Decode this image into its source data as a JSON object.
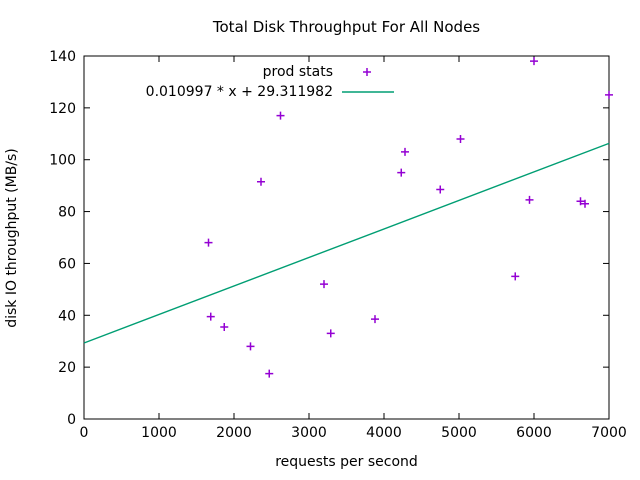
{
  "chart_data": {
    "type": "scatter",
    "title": "Total Disk Throughput For All Nodes",
    "xlabel": "requests per second",
    "ylabel": "disk IO throughput (MB/s)",
    "xlim": [
      0,
      7000
    ],
    "ylim": [
      0,
      140
    ],
    "xticks": [
      0,
      1000,
      2000,
      3000,
      4000,
      5000,
      6000,
      7000
    ],
    "yticks": [
      0,
      20,
      40,
      60,
      80,
      100,
      120,
      140
    ],
    "grid": false,
    "legend_position": "top-center-inside",
    "series": [
      {
        "name": "prod stats",
        "type": "points",
        "marker": "plus",
        "color": "#9400D3",
        "points": [
          [
            1660,
            68
          ],
          [
            1690,
            39.5
          ],
          [
            1870,
            35.5
          ],
          [
            2220,
            28
          ],
          [
            2360,
            91.5
          ],
          [
            2470,
            17.5
          ],
          [
            2620,
            117
          ],
          [
            3200,
            52
          ],
          [
            3290,
            33
          ],
          [
            3880,
            38.5
          ],
          [
            4230,
            95
          ],
          [
            4280,
            103
          ],
          [
            4750,
            88.5
          ],
          [
            5020,
            108
          ],
          [
            5750,
            55
          ],
          [
            5940,
            84.5
          ],
          [
            6000,
            138
          ],
          [
            6620,
            84
          ],
          [
            6680,
            83
          ],
          [
            7000,
            125
          ]
        ]
      },
      {
        "name": "0.010997 * x + 29.311982",
        "type": "line",
        "color": "#009E73",
        "slope": 0.010997,
        "intercept": 29.311982
      }
    ]
  }
}
